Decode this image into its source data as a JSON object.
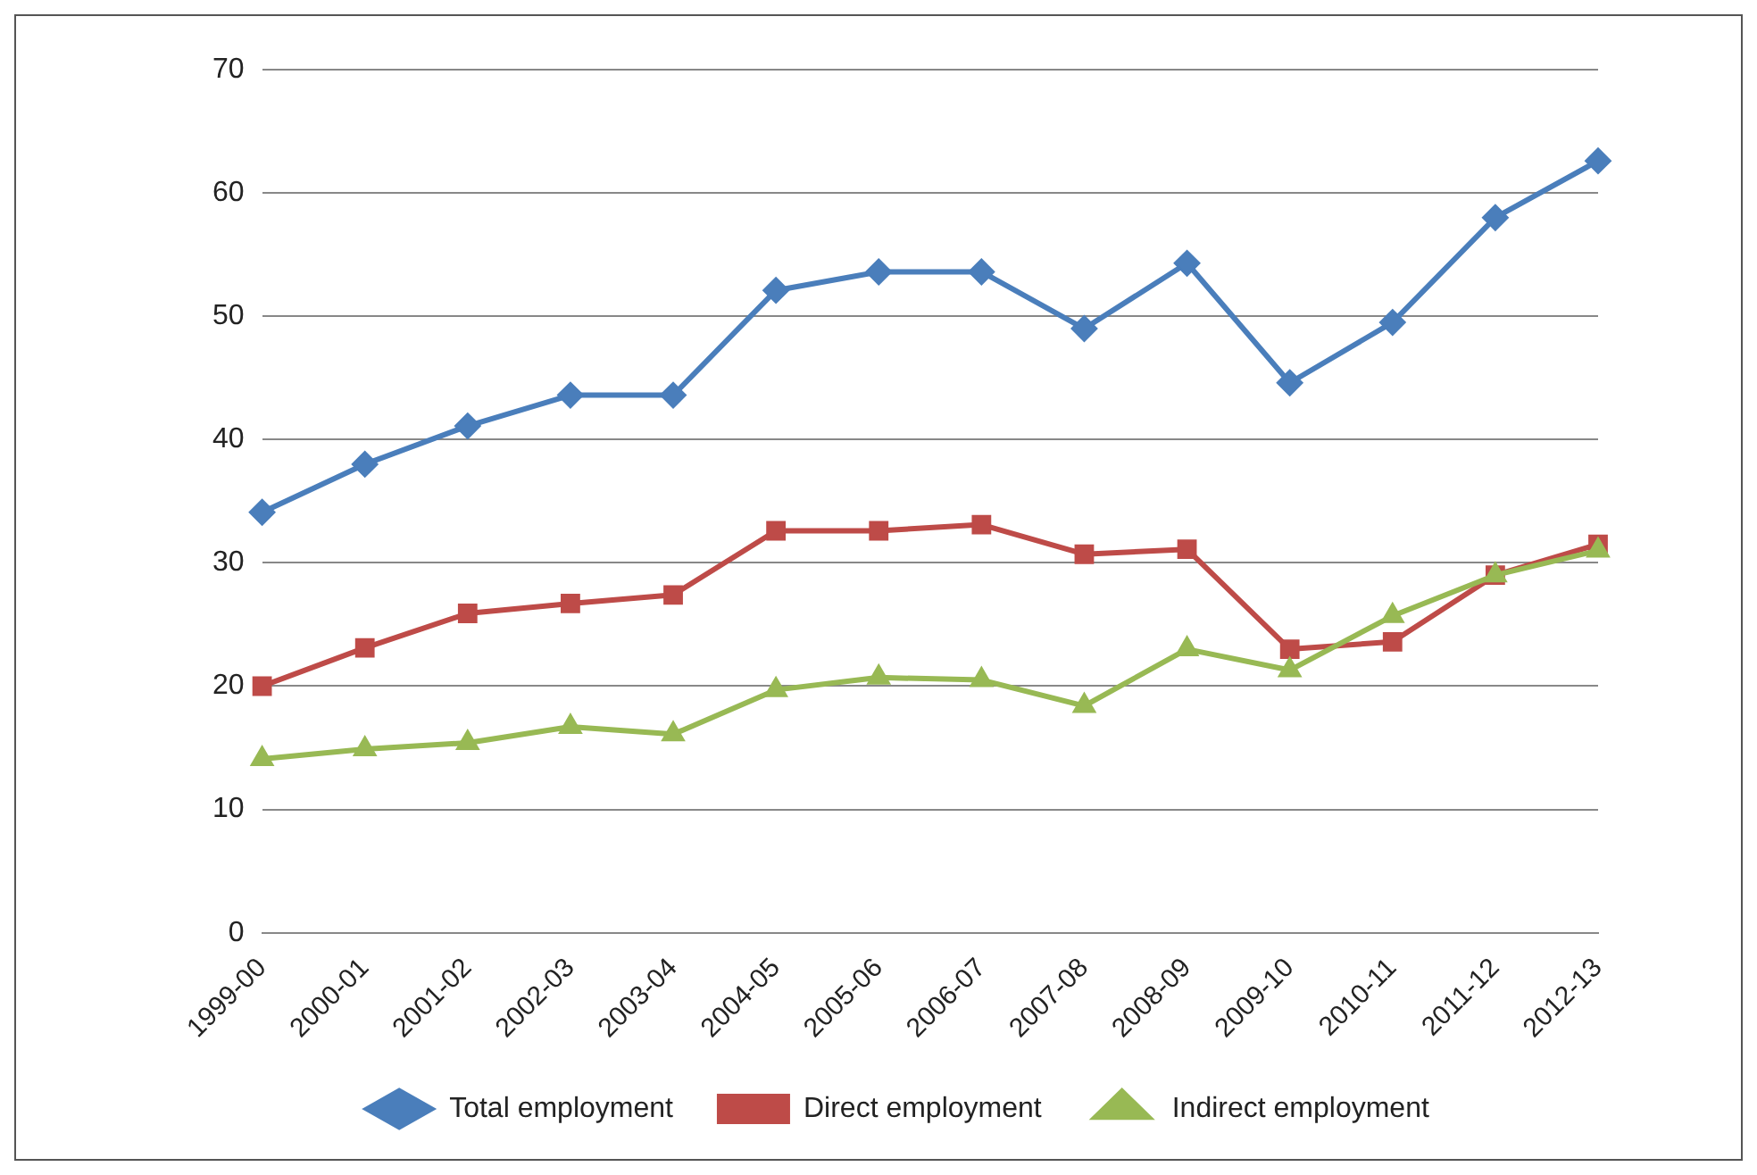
{
  "chart_data": {
    "type": "line",
    "categories": [
      "1999-00",
      "2000-01",
      "2001-02",
      "2002-03",
      "2003-04",
      "2004-05",
      "2005-06",
      "2006-07",
      "2007-08",
      "2008-09",
      "2009-10",
      "2010-11",
      "2011-12",
      "2012-13"
    ],
    "series": [
      {
        "name": "Total employment",
        "color": "#4a7ebb",
        "marker": "diamond",
        "values": [
          34.1,
          38,
          41.1,
          43.6,
          43.6,
          52.1,
          53.6,
          53.6,
          49,
          54.3,
          44.6,
          49.5,
          58,
          62.6
        ]
      },
      {
        "name": "Direct employment",
        "color": "#be4b48",
        "marker": "square",
        "values": [
          20,
          23.1,
          25.9,
          26.7,
          27.4,
          32.6,
          32.6,
          33.1,
          30.7,
          31.1,
          23,
          23.6,
          29,
          31.5
        ]
      },
      {
        "name": "Indirect employment",
        "color": "#98b954",
        "marker": "triangle",
        "values": [
          14.1,
          14.9,
          15.4,
          16.7,
          16.1,
          19.7,
          20.7,
          20.5,
          18.4,
          23,
          21.3,
          25.7,
          29,
          31
        ]
      }
    ],
    "ylim": [
      0,
      70
    ],
    "yticks": [
      0,
      10,
      20,
      30,
      40,
      50,
      60,
      70
    ],
    "grid": "y",
    "legend": "bottom",
    "line_style": "solid"
  }
}
